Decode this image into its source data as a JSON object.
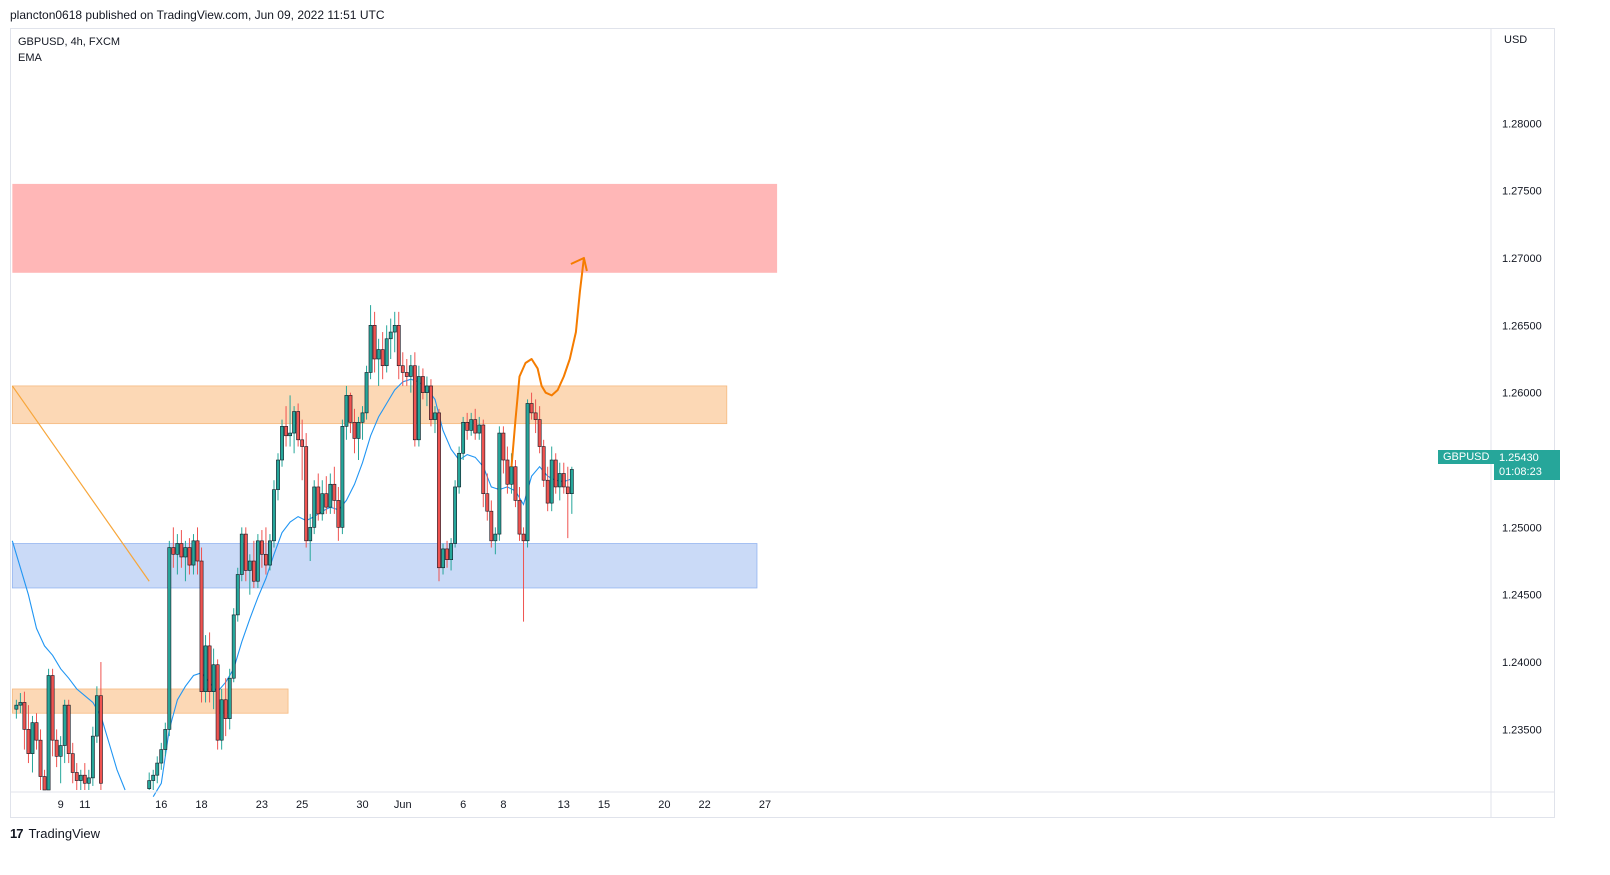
{
  "publish_line": "plancton0618 published on TradingView.com, Jun 09, 2022 11:51 UTC",
  "symbol_line": "GBPUSD, 4h, FXCM",
  "indicator": "EMA",
  "currency": "USD",
  "footer_brand": "TradingView",
  "colors": {
    "up": "#26a69a",
    "down": "#ef5350",
    "ema": "#2196f3",
    "resistance_zone": "#ffb3b3",
    "supply_zone": "#fcd6b2",
    "demand_zone": "#c8d9f7",
    "arrow": "#f57c00",
    "trendline": "#f7a63a"
  },
  "price_tag": {
    "symbol": "GBPUSD",
    "price": "1.25430",
    "countdown": "01:08:23"
  },
  "chart_data": {
    "type": "candlestick",
    "ylim": [
      1.2305,
      1.287
    ],
    "yticks": [
      "1.28000",
      "1.27500",
      "1.27000",
      "1.26500",
      "1.26000",
      "1.25500",
      "1.25000",
      "1.24500",
      "1.24000",
      "1.23500"
    ],
    "ytick_values": [
      1.28,
      1.275,
      1.27,
      1.265,
      1.26,
      1.255,
      1.25,
      1.245,
      1.24,
      1.235
    ],
    "xticks": [
      "9",
      "11",
      "16",
      "18",
      "23",
      "25",
      "30",
      "Jun",
      "6",
      "8",
      "13",
      "15",
      "20",
      "22",
      "27"
    ],
    "xtick_index": [
      12,
      24,
      62,
      82,
      112,
      132,
      162,
      182,
      212,
      232,
      262,
      282,
      312,
      332,
      362
    ],
    "zones": [
      {
        "name": "resistance",
        "y1": 1.2689,
        "y2": 1.2755,
        "i1": -12,
        "i2": 368
      },
      {
        "name": "supply",
        "y1": 1.2577,
        "y2": 1.2605,
        "i1": -12,
        "i2": 343
      },
      {
        "name": "demand",
        "y1": 1.2455,
        "y2": 1.2488,
        "i1": -12,
        "i2": 358
      },
      {
        "name": "lower-supply",
        "y1": 1.2362,
        "y2": 1.238,
        "i1": -12,
        "i2": 125
      }
    ],
    "trendline": {
      "i1": -12,
      "y1": 1.2605,
      "i2": 56,
      "y2": 1.246
    },
    "projection": [
      [
        236,
        1.2545
      ],
      [
        238,
        1.258
      ],
      [
        240,
        1.2612
      ],
      [
        243,
        1.2622
      ],
      [
        246,
        1.2625
      ],
      [
        249,
        1.2618
      ],
      [
        251,
        1.2605
      ],
      [
        253,
        1.26
      ],
      [
        256,
        1.2598
      ],
      [
        259,
        1.2602
      ],
      [
        262,
        1.2612
      ],
      [
        265,
        1.2625
      ],
      [
        268,
        1.2645
      ],
      [
        270,
        1.2675
      ],
      [
        272,
        1.27
      ]
    ],
    "candles": [
      [
        -10,
        1.2365,
        1.2372,
        1.2358,
        1.2368
      ],
      [
        -8,
        1.2368,
        1.2377,
        1.2362,
        1.237
      ],
      [
        -6,
        1.237,
        1.2378,
        1.2335,
        1.235
      ],
      [
        -4,
        1.235,
        1.2368,
        1.2325,
        1.2332
      ],
      [
        -2,
        1.2332,
        1.236,
        1.2318,
        1.2355
      ],
      [
        0,
        1.2355,
        1.2362,
        1.2335,
        1.2342
      ],
      [
        2,
        1.2342,
        1.235,
        1.2305,
        1.2315
      ],
      [
        4,
        1.2315,
        1.232,
        1.228,
        1.229
      ],
      [
        6,
        1.229,
        1.2395,
        1.2285,
        1.239
      ],
      [
        8,
        1.239,
        1.2395,
        1.233,
        1.2342
      ],
      [
        10,
        1.2342,
        1.235,
        1.2322,
        1.233
      ],
      [
        12,
        1.233,
        1.2345,
        1.231,
        1.2338
      ],
      [
        14,
        1.2338,
        1.2372,
        1.2325,
        1.2368
      ],
      [
        16,
        1.2368,
        1.2372,
        1.2325,
        1.2332
      ],
      [
        18,
        1.2332,
        1.234,
        1.231,
        1.2318
      ],
      [
        20,
        1.2318,
        1.2325,
        1.2305,
        1.2312
      ],
      [
        22,
        1.2312,
        1.232,
        1.23,
        1.2316
      ],
      [
        24,
        1.2316,
        1.2325,
        1.2305,
        1.231
      ],
      [
        26,
        1.231,
        1.232,
        1.2302,
        1.2314
      ],
      [
        28,
        1.2314,
        1.2352,
        1.2308,
        1.2345
      ],
      [
        30,
        1.2345,
        1.2382,
        1.234,
        1.2375
      ],
      [
        32,
        1.2375,
        1.24,
        1.2305,
        1.231
      ],
      [
        56,
        1.2306,
        1.2318,
        1.2298,
        1.2312
      ],
      [
        58,
        1.2312,
        1.232,
        1.2305,
        1.2316
      ],
      [
        60,
        1.2316,
        1.233,
        1.231,
        1.2325
      ],
      [
        62,
        1.2325,
        1.234,
        1.232,
        1.2335
      ],
      [
        64,
        1.2335,
        1.2355,
        1.233,
        1.235
      ],
      [
        66,
        1.235,
        1.249,
        1.2345,
        1.2485
      ],
      [
        68,
        1.2485,
        1.25,
        1.247,
        1.248
      ],
      [
        70,
        1.248,
        1.2495,
        1.2465,
        1.2488
      ],
      [
        72,
        1.2488,
        1.2498,
        1.247,
        1.2478
      ],
      [
        74,
        1.2478,
        1.249,
        1.246,
        1.2485
      ],
      [
        76,
        1.2485,
        1.2492,
        1.2465,
        1.2472
      ],
      [
        78,
        1.2472,
        1.2495,
        1.2465,
        1.249
      ],
      [
        80,
        1.249,
        1.25,
        1.2465,
        1.2475
      ],
      [
        82,
        1.2475,
        1.2485,
        1.237,
        1.2378
      ],
      [
        84,
        1.2378,
        1.242,
        1.237,
        1.2412
      ],
      [
        86,
        1.2412,
        1.2422,
        1.237,
        1.2378
      ],
      [
        88,
        1.2378,
        1.241,
        1.2365,
        1.2398
      ],
      [
        90,
        1.2398,
        1.2402,
        1.2335,
        1.2342
      ],
      [
        92,
        1.2342,
        1.238,
        1.2335,
        1.2372
      ],
      [
        94,
        1.2372,
        1.2388,
        1.2345,
        1.2358
      ],
      [
        96,
        1.2358,
        1.2395,
        1.235,
        1.2388
      ],
      [
        98,
        1.2388,
        1.244,
        1.2385,
        1.2435
      ],
      [
        100,
        1.2435,
        1.247,
        1.243,
        1.2465
      ],
      [
        102,
        1.2465,
        1.25,
        1.246,
        1.2495
      ],
      [
        104,
        1.2495,
        1.25,
        1.246,
        1.2468
      ],
      [
        106,
        1.2468,
        1.248,
        1.245,
        1.2475
      ],
      [
        108,
        1.2475,
        1.249,
        1.2455,
        1.246
      ],
      [
        110,
        1.246,
        1.2495,
        1.2455,
        1.249
      ],
      [
        112,
        1.249,
        1.2498,
        1.247,
        1.248
      ],
      [
        114,
        1.248,
        1.25,
        1.2465,
        1.2472
      ],
      [
        116,
        1.2472,
        1.2495,
        1.2468,
        1.249
      ],
      [
        118,
        1.249,
        1.2535,
        1.2485,
        1.2528
      ],
      [
        120,
        1.2528,
        1.2555,
        1.252,
        1.255
      ],
      [
        122,
        1.255,
        1.258,
        1.2545,
        1.2575
      ],
      [
        124,
        1.2575,
        1.259,
        1.256,
        1.2568
      ],
      [
        126,
        1.2568,
        1.2598,
        1.256,
        1.257
      ],
      [
        128,
        1.257,
        1.259,
        1.2555,
        1.2586
      ],
      [
        130,
        1.2586,
        1.2592,
        1.256,
        1.2565
      ],
      [
        132,
        1.2565,
        1.258,
        1.2535,
        1.256
      ],
      [
        134,
        1.256,
        1.257,
        1.2485,
        1.249
      ],
      [
        136,
        1.249,
        1.251,
        1.2475,
        1.25
      ],
      [
        138,
        1.25,
        1.2535,
        1.2495,
        1.253
      ],
      [
        140,
        1.253,
        1.254,
        1.2505,
        1.251
      ],
      [
        142,
        1.251,
        1.2535,
        1.2505,
        1.2525
      ],
      [
        144,
        1.2525,
        1.2538,
        1.251,
        1.2515
      ],
      [
        146,
        1.2515,
        1.254,
        1.251,
        1.2532
      ],
      [
        148,
        1.2532,
        1.2545,
        1.251,
        1.252
      ],
      [
        150,
        1.252,
        1.253,
        1.249,
        1.25
      ],
      [
        152,
        1.25,
        1.258,
        1.2495,
        1.2575
      ],
      [
        154,
        1.2575,
        1.2605,
        1.2565,
        1.2598
      ],
      [
        156,
        1.2598,
        1.26,
        1.257,
        1.2578
      ],
      [
        158,
        1.2578,
        1.2588,
        1.2555,
        1.2566
      ],
      [
        160,
        1.2566,
        1.2582,
        1.255,
        1.2578
      ],
      [
        162,
        1.2578,
        1.259,
        1.2565,
        1.2585
      ],
      [
        164,
        1.2585,
        1.262,
        1.258,
        1.2615
      ],
      [
        166,
        1.2615,
        1.2665,
        1.261,
        1.265
      ],
      [
        168,
        1.265,
        1.266,
        1.2615,
        1.2625
      ],
      [
        170,
        1.2625,
        1.264,
        1.2605,
        1.2632
      ],
      [
        172,
        1.2632,
        1.2645,
        1.261,
        1.262
      ],
      [
        174,
        1.262,
        1.265,
        1.2615,
        1.264
      ],
      [
        176,
        1.264,
        1.2655,
        1.2625,
        1.2645
      ],
      [
        178,
        1.2645,
        1.266,
        1.263,
        1.265
      ],
      [
        180,
        1.265,
        1.266,
        1.261,
        1.262
      ],
      [
        182,
        1.262,
        1.263,
        1.2605,
        1.2615
      ],
      [
        184,
        1.2615,
        1.2625,
        1.2605,
        1.2612
      ],
      [
        186,
        1.2612,
        1.2628,
        1.26,
        1.262
      ],
      [
        188,
        1.262,
        1.263,
        1.256,
        1.2565
      ],
      [
        190,
        1.2565,
        1.262,
        1.256,
        1.2612
      ],
      [
        192,
        1.2612,
        1.2618,
        1.2595,
        1.26
      ],
      [
        194,
        1.26,
        1.2612,
        1.259,
        1.2605
      ],
      [
        196,
        1.2605,
        1.261,
        1.2575,
        1.258
      ],
      [
        198,
        1.258,
        1.259,
        1.257,
        1.2585
      ],
      [
        200,
        1.2585,
        1.2588,
        1.246,
        1.247
      ],
      [
        202,
        1.247,
        1.2488,
        1.2465,
        1.2484
      ],
      [
        204,
        1.2484,
        1.249,
        1.247,
        1.2476
      ],
      [
        206,
        1.2476,
        1.2492,
        1.2468,
        1.2488
      ],
      [
        208,
        1.2488,
        1.2535,
        1.2485,
        1.253
      ],
      [
        210,
        1.253,
        1.256,
        1.2525,
        1.2555
      ],
      [
        212,
        1.2555,
        1.2582,
        1.255,
        1.2578
      ],
      [
        214,
        1.2578,
        1.2585,
        1.2565,
        1.2572
      ],
      [
        216,
        1.2572,
        1.2585,
        1.2568,
        1.258
      ],
      [
        218,
        1.258,
        1.2588,
        1.2565,
        1.257
      ],
      [
        220,
        1.257,
        1.2582,
        1.2565,
        1.2576
      ],
      [
        222,
        1.2576,
        1.258,
        1.2515,
        1.2525
      ],
      [
        224,
        1.2525,
        1.254,
        1.2505,
        1.2512
      ],
      [
        226,
        1.2512,
        1.252,
        1.2485,
        1.249
      ],
      [
        228,
        1.249,
        1.25,
        1.248,
        1.2495
      ],
      [
        230,
        1.2495,
        1.2575,
        1.249,
        1.257
      ],
      [
        232,
        1.257,
        1.2575,
        1.254,
        1.255
      ],
      [
        234,
        1.255,
        1.256,
        1.2525,
        1.2532
      ],
      [
        236,
        1.2532,
        1.2555,
        1.2525,
        1.2545
      ],
      [
        238,
        1.2545,
        1.255,
        1.2515,
        1.252
      ],
      [
        240,
        1.252,
        1.253,
        1.249,
        1.2495
      ],
      [
        242,
        1.2495,
        1.25,
        1.243,
        1.249
      ],
      [
        244,
        1.249,
        1.2595,
        1.2485,
        1.2592
      ],
      [
        246,
        1.2592,
        1.26,
        1.258,
        1.2585
      ],
      [
        248,
        1.2585,
        1.2595,
        1.257,
        1.258
      ],
      [
        250,
        1.258,
        1.259,
        1.2555,
        1.256
      ],
      [
        252,
        1.256,
        1.2565,
        1.253,
        1.2535
      ],
      [
        254,
        1.2535,
        1.2545,
        1.2512,
        1.2518
      ],
      [
        256,
        1.2518,
        1.256,
        1.2512,
        1.255
      ],
      [
        258,
        1.255,
        1.2555,
        1.2525,
        1.253
      ],
      [
        260,
        1.253,
        1.2548,
        1.252,
        1.254
      ],
      [
        262,
        1.254,
        1.2548,
        1.2525,
        1.253
      ],
      [
        264,
        1.253,
        1.2545,
        1.2492,
        1.2525
      ],
      [
        266,
        1.2525,
        1.2545,
        1.251,
        1.2543
      ]
    ],
    "ema": [
      [
        -12,
        1.249
      ],
      [
        -8,
        1.247
      ],
      [
        -4,
        1.245
      ],
      [
        0,
        1.2425
      ],
      [
        4,
        1.2412
      ],
      [
        8,
        1.2405
      ],
      [
        12,
        1.2395
      ],
      [
        16,
        1.2388
      ],
      [
        20,
        1.238
      ],
      [
        24,
        1.2375
      ],
      [
        28,
        1.237
      ],
      [
        32,
        1.236
      ],
      [
        36,
        1.234
      ],
      [
        40,
        1.232
      ],
      [
        44,
        1.2305
      ],
      [
        58,
        1.23
      ],
      [
        62,
        1.231
      ],
      [
        66,
        1.235
      ],
      [
        70,
        1.2372
      ],
      [
        74,
        1.2382
      ],
      [
        78,
        1.239
      ],
      [
        82,
        1.2392
      ],
      [
        86,
        1.2385
      ],
      [
        90,
        1.2378
      ],
      [
        94,
        1.2385
      ],
      [
        98,
        1.2395
      ],
      [
        102,
        1.2415
      ],
      [
        106,
        1.2432
      ],
      [
        110,
        1.2448
      ],
      [
        114,
        1.2462
      ],
      [
        118,
        1.248
      ],
      [
        122,
        1.2496
      ],
      [
        126,
        1.2504
      ],
      [
        130,
        1.2508
      ],
      [
        134,
        1.2505
      ],
      [
        138,
        1.2508
      ],
      [
        142,
        1.2512
      ],
      [
        146,
        1.2515
      ],
      [
        150,
        1.2513
      ],
      [
        154,
        1.252
      ],
      [
        158,
        1.2532
      ],
      [
        162,
        1.2548
      ],
      [
        166,
        1.2568
      ],
      [
        170,
        1.2582
      ],
      [
        174,
        1.2592
      ],
      [
        178,
        1.2602
      ],
      [
        182,
        1.2608
      ],
      [
        186,
        1.261
      ],
      [
        190,
        1.2608
      ],
      [
        194,
        1.2603
      ],
      [
        198,
        1.2595
      ],
      [
        202,
        1.2572
      ],
      [
        206,
        1.2558
      ],
      [
        210,
        1.255
      ],
      [
        214,
        1.2554
      ],
      [
        218,
        1.2552
      ],
      [
        222,
        1.2545
      ],
      [
        226,
        1.253
      ],
      [
        230,
        1.2528
      ],
      [
        234,
        1.253
      ],
      [
        238,
        1.2527
      ],
      [
        242,
        1.2517
      ],
      [
        246,
        1.2538
      ],
      [
        250,
        1.2545
      ],
      [
        254,
        1.2538
      ],
      [
        258,
        1.2535
      ],
      [
        262,
        1.2534
      ],
      [
        266,
        1.2536
      ]
    ]
  }
}
